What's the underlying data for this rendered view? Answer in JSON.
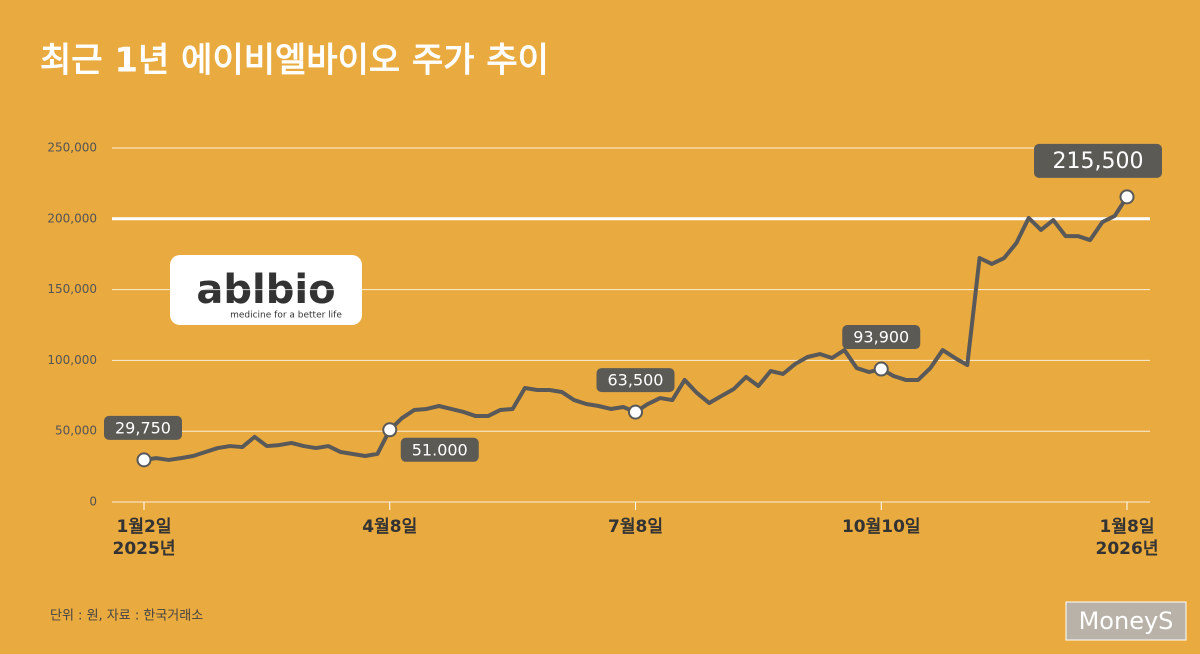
{
  "chart_data": {
    "type": "line",
    "title": "최근 1년 에이비엘바이오 주가 추이",
    "note": "단위 : 원, 자료 : 한국거래소",
    "logo": {
      "name": "ablbio",
      "tagline": "medicine for a better life"
    },
    "source_mark": "MoneyS",
    "categories": [
      "1월2일\n2025년",
      null,
      null,
      null,
      null,
      null,
      null,
      null,
      null,
      null,
      null,
      null,
      null,
      null,
      null,
      null,
      null,
      null,
      null,
      null,
      "4월8일",
      null,
      null,
      null,
      null,
      null,
      null,
      null,
      null,
      null,
      null,
      null,
      null,
      null,
      null,
      null,
      null,
      null,
      null,
      null,
      "7월8일",
      null,
      null,
      null,
      null,
      null,
      null,
      null,
      null,
      null,
      null,
      null,
      null,
      null,
      null,
      null,
      null,
      null,
      null,
      null,
      "10월10일",
      null,
      null,
      null,
      null,
      null,
      null,
      null,
      null,
      null,
      null,
      null,
      null,
      null,
      null,
      null,
      null,
      null,
      null,
      null,
      "1월8일\n2026년"
    ],
    "series": [
      {
        "name": "에이비엘바이오",
        "color": "#595959",
        "values": [
          29750,
          31000,
          29700,
          31000,
          32500,
          35300,
          38100,
          39500,
          38800,
          46000,
          39500,
          40200,
          41700,
          39500,
          38100,
          39500,
          35300,
          33900,
          32500,
          34000,
          51000,
          59300,
          65000,
          65700,
          67800,
          65700,
          63600,
          60700,
          60700,
          65000,
          65700,
          80500,
          79100,
          79100,
          77700,
          72000,
          69200,
          67800,
          65700,
          67100,
          63500,
          69200,
          73400,
          72000,
          86200,
          77000,
          69900,
          74900,
          79800,
          88300,
          81900,
          92500,
          90400,
          97500,
          102400,
          104500,
          101700,
          107300,
          94600,
          91800,
          93900,
          89000,
          86200,
          86200,
          94600,
          107300,
          101700,
          96700,
          172300,
          168100,
          172300,
          182900,
          200600,
          192100,
          199100,
          187800,
          187800,
          185000,
          197700,
          202000,
          215500
        ],
        "value_labels": [
          "29,750",
          null,
          null,
          null,
          null,
          null,
          null,
          null,
          null,
          null,
          null,
          null,
          null,
          null,
          null,
          null,
          null,
          null,
          null,
          null,
          "51.000",
          null,
          null,
          null,
          null,
          null,
          null,
          null,
          null,
          null,
          null,
          null,
          null,
          null,
          null,
          null,
          null,
          null,
          null,
          null,
          "63,500",
          null,
          null,
          null,
          null,
          null,
          null,
          null,
          null,
          null,
          null,
          null,
          null,
          null,
          null,
          null,
          null,
          null,
          null,
          null,
          "93,900",
          null,
          null,
          null,
          null,
          null,
          null,
          null,
          null,
          null,
          null,
          null,
          null,
          null,
          null,
          null,
          null,
          null,
          null,
          null,
          "215,500"
        ]
      }
    ],
    "ylim": [
      0,
      250000
    ],
    "yticks": [
      {
        "value": 0,
        "label": "0"
      },
      {
        "value": 50000,
        "label": "50,000"
      },
      {
        "value": 100000,
        "label": "100,000"
      },
      {
        "value": 150000,
        "label": "150,000"
      },
      {
        "value": 200000,
        "label": "200,000"
      },
      {
        "value": 250000,
        "label": "250,000"
      }
    ],
    "reference_line": 200000,
    "grid": true
  }
}
